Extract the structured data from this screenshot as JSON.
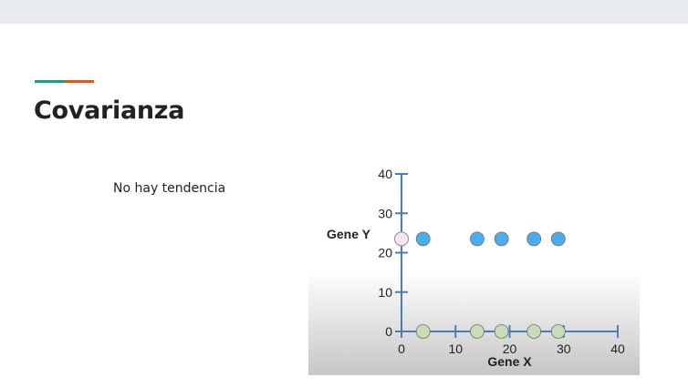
{
  "slide": {
    "title": "Covarianza",
    "subtitle": "No hay tendencia"
  },
  "colors": {
    "accent_teal": "#1a9c92",
    "accent_orange": "#e0571c",
    "axis": "#4a7db8",
    "gene_y_points": "#4aaeee",
    "gene_x_points": "#c7dcb8",
    "origin_point": "#fbe4ee"
  },
  "chart_data": {
    "type": "scatter",
    "xlabel": "Gene X",
    "ylabel": "Gene Y",
    "xlim": [
      0,
      40
    ],
    "ylim": [
      0,
      40
    ],
    "x_ticks": [
      0,
      10,
      20,
      30,
      40
    ],
    "y_ticks": [
      0,
      10,
      20,
      30,
      40
    ],
    "series": [
      {
        "color": "#4aaeee",
        "points": [
          [
            4,
            23.5
          ],
          [
            14,
            23.5
          ],
          [
            18.5,
            23.5
          ],
          [
            24.5,
            23.5
          ],
          [
            29,
            23.5
          ]
        ]
      },
      {
        "color": "#c7dcb8",
        "points": [
          [
            4,
            0
          ],
          [
            14,
            0
          ],
          [
            18.5,
            0
          ],
          [
            24.5,
            0
          ],
          [
            29,
            0
          ]
        ]
      },
      {
        "color": "#fbe4ee",
        "points": [
          [
            0,
            23.5
          ]
        ]
      }
    ],
    "grid": false,
    "legend": "none"
  }
}
